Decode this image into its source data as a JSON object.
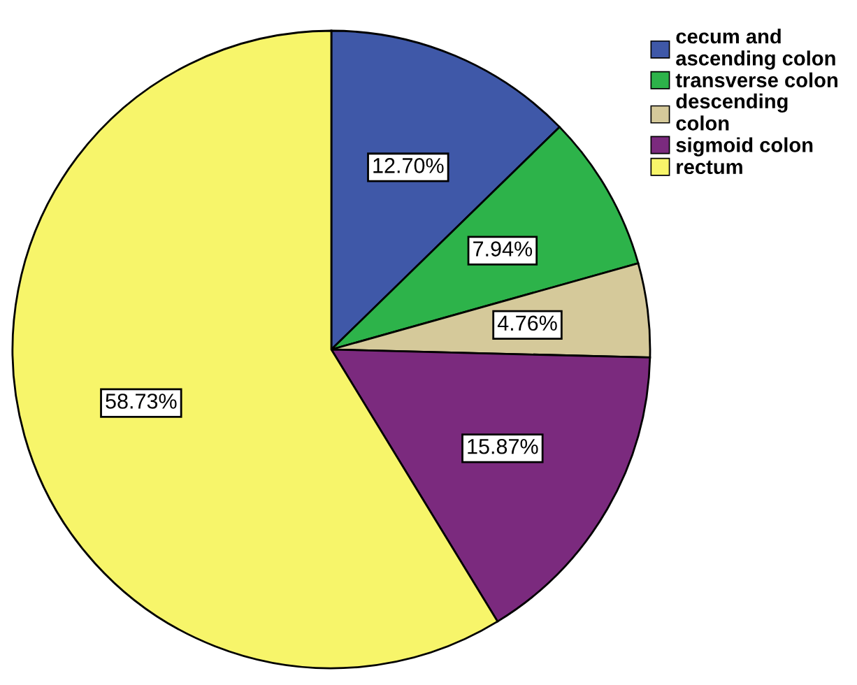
{
  "chart_data": {
    "type": "pie",
    "categories": [
      "cecum and\nascending colon",
      "transverse colon",
      "descending\ncolon",
      "sigmoid colon",
      "rectum"
    ],
    "values": [
      12.7,
      7.94,
      4.76,
      15.87,
      58.73
    ],
    "colors": [
      "#3f58a8",
      "#2db34a",
      "#d5c99a",
      "#7b2a7e",
      "#f7f56a"
    ],
    "value_labels": [
      "12.70%",
      "7.94%",
      "4.76%",
      "15.87%",
      "58.73%"
    ],
    "legend": "top right"
  }
}
